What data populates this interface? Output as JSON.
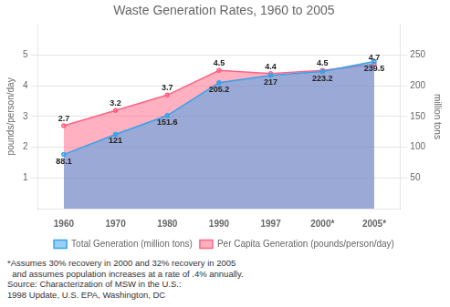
{
  "chart_data": {
    "type": "area",
    "title": "Waste Generation Rates, 1960 to 2005",
    "categories": [
      "1960",
      "1970",
      "1980",
      "1990",
      "1997",
      "2000*",
      "2005*"
    ],
    "series": [
      {
        "name": "Total Generation (million tons)",
        "values": [
          88.1,
          121.0,
          151.6,
          205.2,
          217.0,
          223.2,
          239.5
        ],
        "axis": "y2"
      },
      {
        "name": "Per Capita Generation (pounds/person/day)",
        "values": [
          2.7,
          3.2,
          3.7,
          4.5,
          4.4,
          4.5,
          4.7
        ]
      }
    ],
    "ylabel": "pounds/person/day",
    "y2label": "million tons",
    "ylim": [
      0,
      6.0
    ],
    "yticks": [
      1,
      2,
      3,
      4,
      5
    ],
    "y2lim": [
      0,
      300
    ],
    "y2ticks": [
      50,
      100,
      150,
      200,
      250
    ],
    "grid": true,
    "legend": "bottom",
    "data_labels": true,
    "annotations": [
      "*Assumes 30% recovery in 2000 and 32% recovery in 2005\n  and assumes population increases at a rate of .4% annually.",
      "Source: Characterization of MSW in the U.S.:\n1998 Update, U.S. EPA, Washington, DC"
    ]
  }
}
